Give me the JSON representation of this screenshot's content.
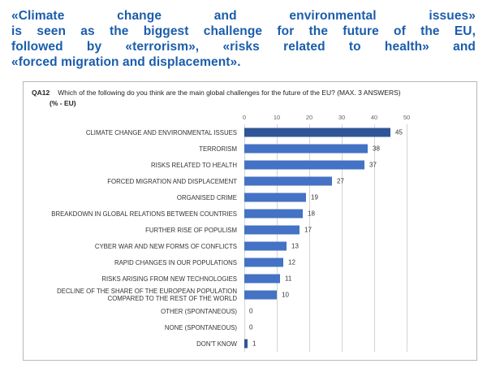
{
  "headline": {
    "lines": [
      "«Climate change and environmental issues»",
      "is seen as the biggest challenge for the future of the EU,",
      "followed by «terrorism», «risks related to health» and",
      "«forced migration and displacement»."
    ],
    "full_text": "«Climate change and environmental issues» is seen as the biggest challenge for the future of the EU, followed by «terrorism», «risks related to health» and «forced migration and displacement»."
  },
  "chart": {
    "question_code": "QA12",
    "question_text": "Which of the following do you think are the main global challenges for the future of the EU? (MAX. 3 ANSWERS)",
    "subtitle": "(% - EU)"
  },
  "chart_data": {
    "type": "bar",
    "orientation": "horizontal",
    "title": "",
    "xlabel": "",
    "ylabel": "",
    "categories": [
      "CLIMATE CHANGE AND ENVIRONMENTAL ISSUES",
      "TERRORISM",
      "RISKS RELATED TO HEALTH",
      "FORCED MIGRATION AND DISPLACEMENT",
      "ORGANISED CRIME",
      "BREAKDOWN IN GLOBAL RELATIONS BETWEEN COUNTRIES",
      "FURTHER RISE OF POPULISM",
      "CYBER WAR AND NEW FORMS OF CONFLICTS",
      "RAPID CHANGES IN OUR POPULATIONS",
      "RISKS ARISING FROM NEW TECHNOLOGIES",
      "DECLINE OF THE SHARE OF THE EUROPEAN POPULATION COMPARED TO THE REST OF THE WORLD",
      "OTHER (SPONTANEOUS)",
      "NONE (SPONTANEOUS)",
      "DON'T KNOW"
    ],
    "values": [
      45,
      38,
      37,
      27,
      19,
      18,
      17,
      13,
      12,
      11,
      10,
      0,
      0,
      1
    ],
    "xlim": [
      0,
      50
    ],
    "xticks": [
      0,
      10,
      20,
      30,
      40,
      50
    ],
    "grid": true,
    "value_labels": true,
    "bar_color": "#4472c4",
    "highlight_color": "#2f5597",
    "highlight_indices": [
      0,
      13
    ]
  },
  "colors": {
    "headline_blue": "#1a5dab",
    "panel_border": "#b7b7b7",
    "gridline": "#d4d4d4"
  }
}
